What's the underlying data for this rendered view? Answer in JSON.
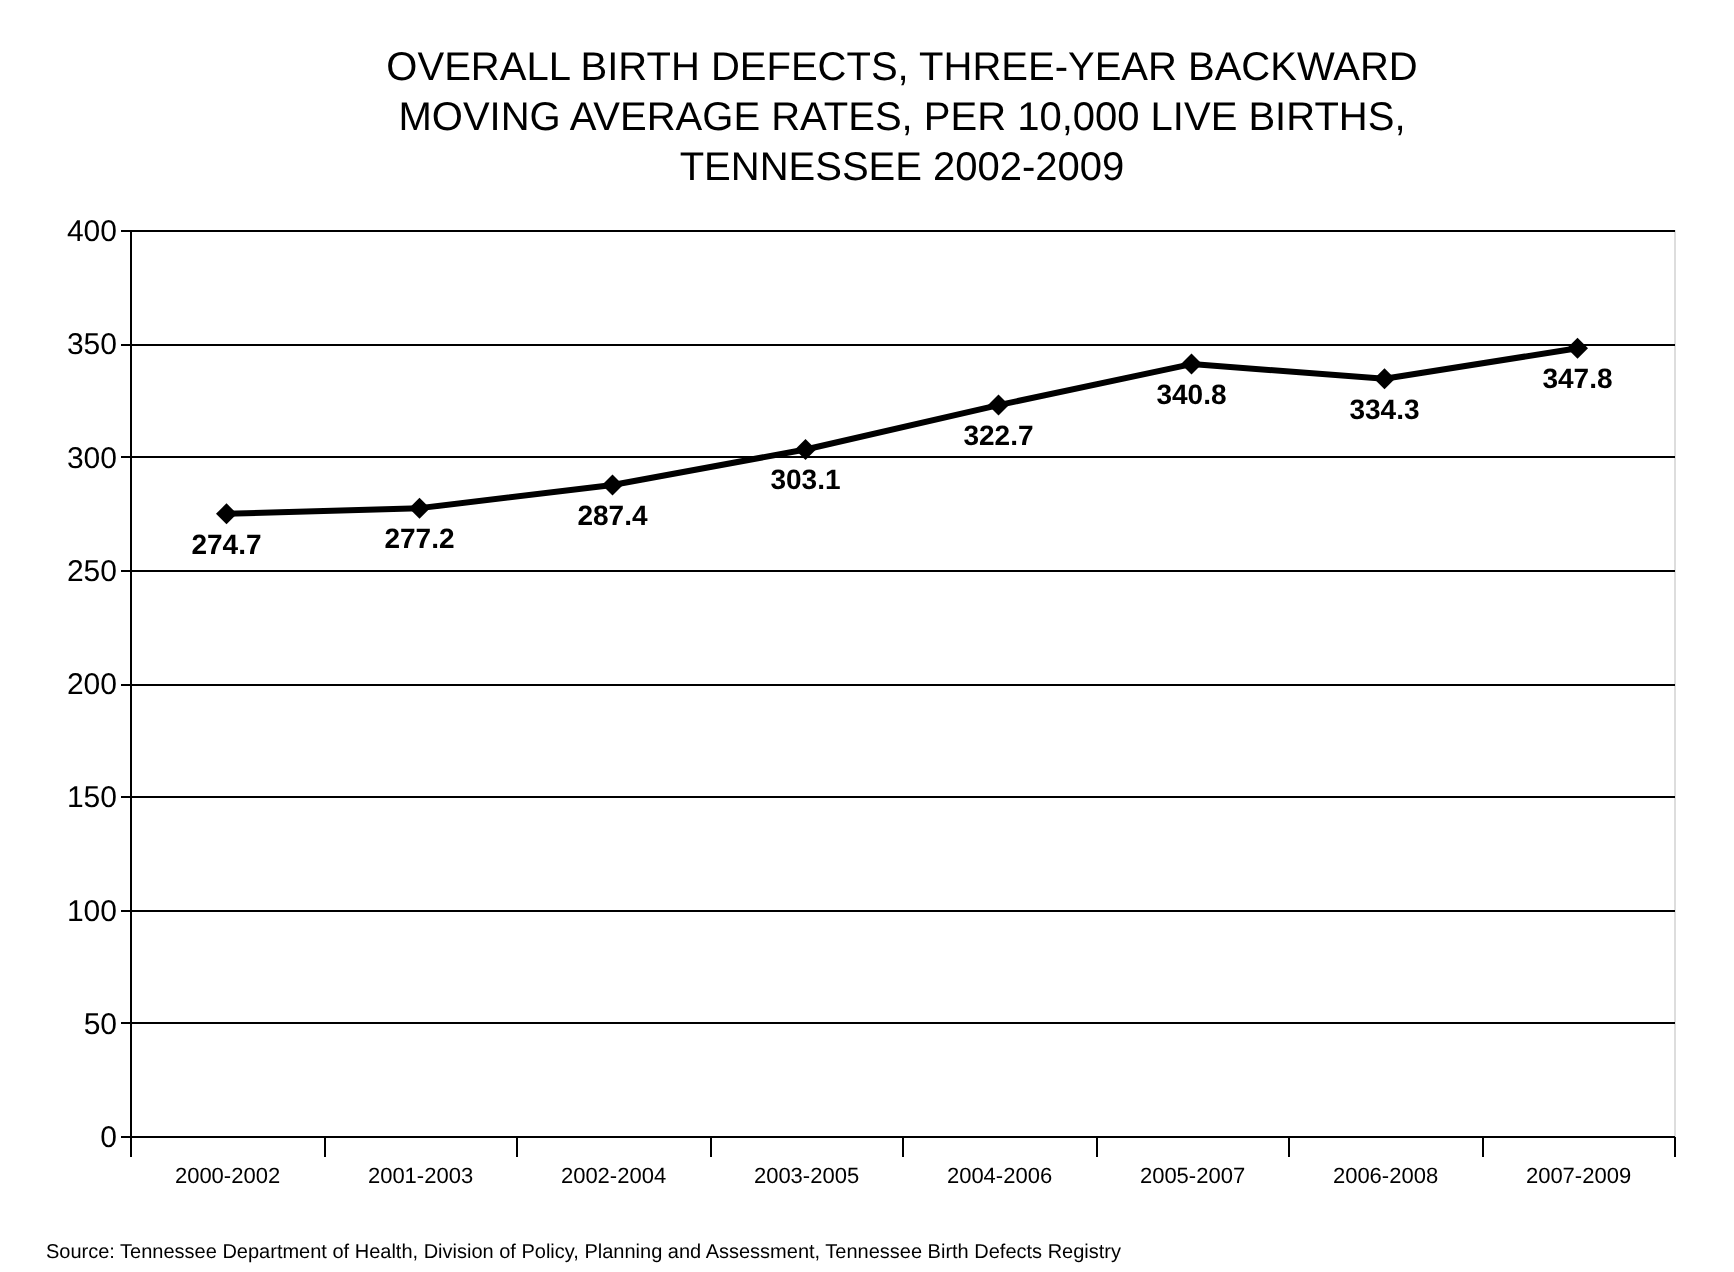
{
  "chart_data": {
    "type": "line",
    "title": [
      "OVERALL BIRTH DEFECTS, THREE-YEAR BACKWARD",
      "MOVING AVERAGE RATES, PER 10,000 LIVE BIRTHS,",
      "TENNESSEE 2002-2009"
    ],
    "categories": [
      "2000-2002",
      "2001-2003",
      "2002-2004",
      "2003-2005",
      "2004-2006",
      "2005-2007",
      "2006-2008",
      "2007-2009"
    ],
    "series": [
      {
        "color": "#000000",
        "values": [
          274.7,
          277.2,
          287.4,
          303.1,
          322.7,
          340.8,
          334.3,
          347.8
        ]
      }
    ],
    "ylim": [
      0,
      400
    ],
    "yticks": [
      0,
      50,
      100,
      150,
      200,
      250,
      300,
      350,
      400
    ],
    "grid": "y",
    "marker": "diamond",
    "line_style": "solid",
    "data_labels": true,
    "annotations": [
      "Source:  Tennessee Department of Health, Division of Policy, Planning and Assessment, Tennessee Birth Defects Registry"
    ]
  }
}
